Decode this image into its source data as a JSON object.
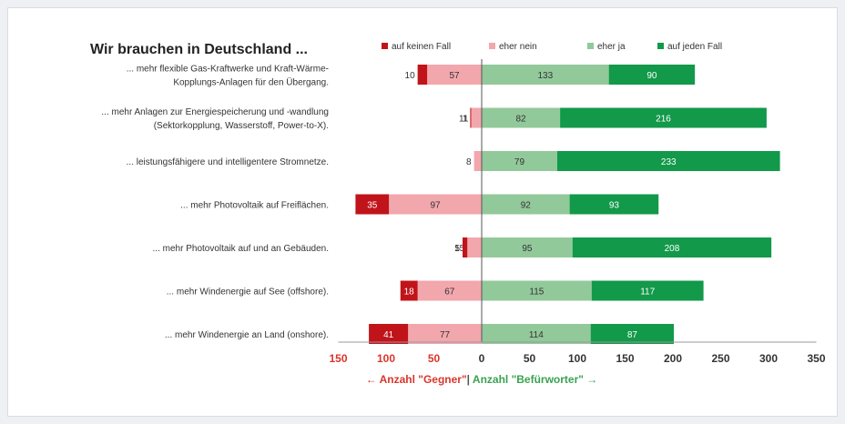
{
  "chart_data": {
    "type": "bar",
    "orientation": "horizontal-diverging",
    "title": "Wir brauchen in Deutschland ...",
    "categories": [
      [
        "... mehr flexible Gas-Kraftwerke und Kraft-Wärme-",
        "Kopplungs-Anlagen für den Übergang."
      ],
      [
        "... mehr Anlagen zur Energiespeicherung und -wandlung",
        "(Sektorkopplung, Wasserstoff, Power-to-X)."
      ],
      [
        "... leistungsfähigere und intelligentere Stromnetze."
      ],
      [
        "... mehr Photovoltaik auf Freiflächen."
      ],
      [
        "... mehr Photovoltaik auf und an Gebäuden."
      ],
      [
        "... mehr Windenergie auf See (offshore)."
      ],
      [
        "... mehr Windenergie an Land (onshore)."
      ]
    ],
    "series": [
      {
        "name": "auf keinen Fall",
        "side": "negative",
        "color": "#c0141a",
        "values": [
          10,
          1,
          0,
          35,
          5,
          18,
          41
        ],
        "labels": [
          "10",
          "1",
          "",
          "35",
          "5",
          "18",
          "41"
        ]
      },
      {
        "name": "eher nein",
        "side": "negative",
        "color": "#f2a7ad",
        "values": [
          57,
          11,
          8,
          97,
          15,
          67,
          77
        ],
        "labels": [
          "57",
          "11",
          "8",
          "97",
          "15",
          "67",
          "77"
        ]
      },
      {
        "name": "eher ja",
        "side": "positive",
        "color": "#92c99a",
        "values": [
          133,
          82,
          79,
          92,
          95,
          115,
          114
        ],
        "labels": [
          "133",
          "82",
          "79",
          "92",
          "95",
          "115",
          "114"
        ]
      },
      {
        "name": "auf jeden Fall",
        "side": "positive",
        "color": "#12994a",
        "values": [
          90,
          216,
          233,
          93,
          208,
          117,
          87
        ],
        "labels": [
          "90",
          "216",
          "233",
          "93",
          "208",
          "117",
          "87"
        ]
      }
    ],
    "xlim": [
      -150,
      350
    ],
    "xticks": [
      {
        "value": -150,
        "label": "150",
        "color": "#d9362b"
      },
      {
        "value": -100,
        "label": "100",
        "color": "#d9362b"
      },
      {
        "value": -50,
        "label": "50",
        "color": "#d9362b"
      },
      {
        "value": 0,
        "label": "0",
        "color": "#333333"
      },
      {
        "value": 50,
        "label": "50",
        "color": "#333333"
      },
      {
        "value": 100,
        "label": "100",
        "color": "#333333"
      },
      {
        "value": 150,
        "label": "150",
        "color": "#333333"
      },
      {
        "value": 200,
        "label": "200",
        "color": "#333333"
      },
      {
        "value": 250,
        "label": "250",
        "color": "#333333"
      },
      {
        "value": 300,
        "label": "300",
        "color": "#333333"
      },
      {
        "value": 350,
        "label": "350",
        "color": "#333333"
      }
    ],
    "xlabel_negative": "← Anzahl \"Gegner\"",
    "xlabel_separator": "|",
    "xlabel_positive": "Anzahl \"Befürworter\" →",
    "xlabel_negative_color": "#d9362b",
    "xlabel_positive_color": "#3aa24f",
    "legend_position": "top",
    "grid": false
  }
}
